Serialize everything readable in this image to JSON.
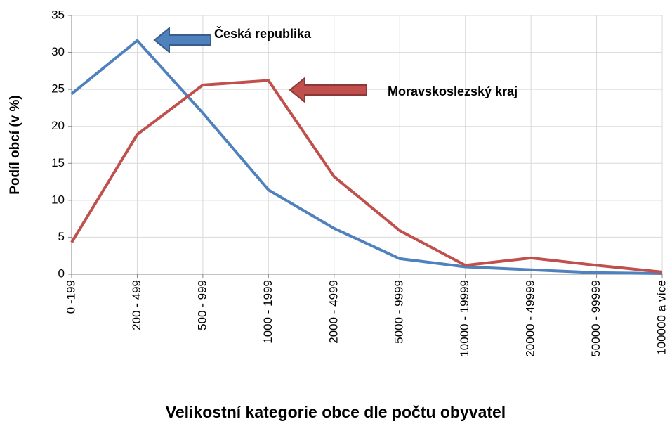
{
  "chart_data": {
    "type": "line",
    "y_label": "Podíl obcí (v %)",
    "x_label": "Velikostní kategorie obce dle počtu obyvatel",
    "categories": [
      "0 -199",
      "200 - 499",
      "500 - 999",
      "1000 - 1999",
      "2000 - 4999",
      "5000 - 9999",
      "10000 - 19999",
      "20000 - 49999",
      "50000 - 99999",
      "100000 a více"
    ],
    "series": [
      {
        "name": "Česká republika",
        "color": "#4f81bd",
        "values": [
          24.4,
          31.6,
          21.8,
          11.4,
          6.2,
          2.1,
          1.0,
          0.6,
          0.2,
          0.1
        ]
      },
      {
        "name": "Moravskoslezský  kraj",
        "color": "#c0504d",
        "values": [
          4.3,
          18.9,
          25.6,
          26.2,
          13.2,
          5.9,
          1.2,
          2.2,
          1.2,
          0.3
        ]
      }
    ],
    "ylim": [
      0,
      35
    ],
    "yticks": [
      0,
      5,
      10,
      15,
      20,
      25,
      30,
      35
    ],
    "grid": true
  }
}
